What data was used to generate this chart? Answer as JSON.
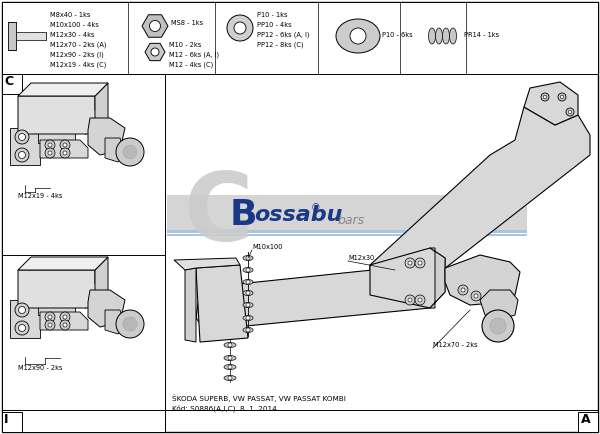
{
  "bg_color": "#ffffff",
  "top_parts_text_col1": [
    "M8x40 - 1ks",
    "M10x100 - 4ks",
    "M12x30 - 4ks",
    "M12x70 - 2ks (A)",
    "M12x90 - 2ks (I)",
    "M12x19 - 4ks (C)"
  ],
  "top_parts_text_col2_a": "MS8 - 1ks",
  "top_parts_text_col2_b": [
    "M10 - 2ks",
    "M12 - 6ks (A, I)",
    "M12 - 4ks (C)"
  ],
  "top_parts_text_col3": [
    "P10 - 1ks",
    "PP10 - 4ks",
    "PP12 - 6ks (A, I)",
    "PP12 - 8ks (C)"
  ],
  "top_parts_text_col4": "P10 - 6ks",
  "top_parts_text_col5": "PR14 - 1ks",
  "label_c": "C",
  "label_i": "I",
  "label_a": "A",
  "footer_line1": "ŠKODA SUPERB, VW PASSAT, VW PASSAT KOMBI",
  "footer_line2": "Kód: S0886(A,I,C)  8. 1. 2014",
  "label_m12x19": "M12x19 - 4ks",
  "label_m12x90": "M12x90 - 2ks",
  "label_m10x100": "M10x100",
  "label_m12x30": "M12x30",
  "label_m12x70": "M12x70 - 2ks",
  "logo_bg": "#d8d8d8",
  "logo_blue": "#1a3888",
  "logo_C_color": "#d0d0d0",
  "logo_bar_color": "#b8cce4"
}
